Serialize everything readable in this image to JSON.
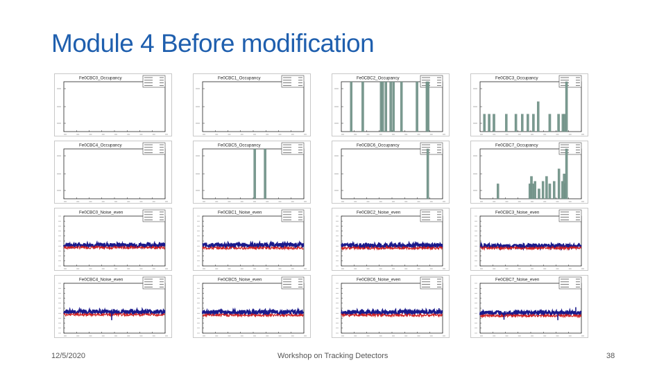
{
  "slide": {
    "title": "Module 4 Before modification",
    "footer_date": "12/5/2020",
    "footer_center": "Workshop on Tracking Detectors",
    "page_number": "38"
  },
  "colors": {
    "title": "#1f5fae",
    "occupancy_fill": "#7a9a90",
    "noise_odd": "#1a1a8c",
    "noise_even": "#d02020"
  },
  "panels": [
    {
      "title": "Fe0CBC0_Occupancy",
      "type": "occupancy",
      "bars": []
    },
    {
      "title": "Fe0CBC1_Occupancy",
      "type": "occupancy",
      "bars": []
    },
    {
      "title": "Fe0CBC2_Occupancy",
      "type": "occupancy",
      "bars": [
        {
          "x": 22,
          "h": 1.0
        },
        {
          "x": 51,
          "h": 1.0
        },
        {
          "x": 97,
          "h": 1.0
        },
        {
          "x": 101,
          "h": 1.0
        },
        {
          "x": 109,
          "h": 1.0
        },
        {
          "x": 121,
          "h": 1.0
        },
        {
          "x": 128,
          "h": 1.0
        },
        {
          "x": 148,
          "h": 1.0
        },
        {
          "x": 187,
          "h": 1.0
        },
        {
          "x": 212,
          "h": 1.0
        },
        {
          "x": 215,
          "h": 1.0
        }
      ]
    },
    {
      "title": "Fe0CBC3_Occupancy",
      "type": "occupancy",
      "bars": [
        {
          "x": 8,
          "h": 0.35
        },
        {
          "x": 20,
          "h": 0.35
        },
        {
          "x": 32,
          "h": 0.35
        },
        {
          "x": 63,
          "h": 0.35
        },
        {
          "x": 87,
          "h": 0.35
        },
        {
          "x": 103,
          "h": 0.35
        },
        {
          "x": 117,
          "h": 0.35
        },
        {
          "x": 131,
          "h": 0.35
        },
        {
          "x": 143,
          "h": 0.6
        },
        {
          "x": 172,
          "h": 0.35
        },
        {
          "x": 194,
          "h": 0.35
        },
        {
          "x": 205,
          "h": 0.35
        },
        {
          "x": 209,
          "h": 0.35
        },
        {
          "x": 214,
          "h": 1.0
        }
      ]
    },
    {
      "title": "Fe0CBC4_Occupancy",
      "type": "occupancy",
      "bars": []
    },
    {
      "title": "Fe0CBC5_Occupancy",
      "type": "occupancy",
      "bars": [
        {
          "x": 128,
          "h": 1.0
        },
        {
          "x": 154,
          "h": 1.0
        }
      ]
    },
    {
      "title": "Fe0CBC6_Occupancy",
      "type": "occupancy",
      "bars": [
        {
          "x": 214,
          "h": 1.0
        }
      ]
    },
    {
      "title": "Fe0CBC7_Occupancy",
      "type": "occupancy",
      "bars": [
        {
          "x": 42,
          "h": 0.3
        },
        {
          "x": 122,
          "h": 0.3
        },
        {
          "x": 126,
          "h": 0.45
        },
        {
          "x": 130,
          "h": 0.3
        },
        {
          "x": 135,
          "h": 0.35
        },
        {
          "x": 145,
          "h": 0.2
        },
        {
          "x": 155,
          "h": 0.35
        },
        {
          "x": 164,
          "h": 0.45
        },
        {
          "x": 172,
          "h": 0.3
        },
        {
          "x": 183,
          "h": 0.35
        },
        {
          "x": 195,
          "h": 0.6
        },
        {
          "x": 204,
          "h": 0.35
        },
        {
          "x": 208,
          "h": 0.5
        },
        {
          "x": 212,
          "h": 0.3
        },
        {
          "x": 214,
          "h": 1.0
        }
      ]
    },
    {
      "title": "Fe0CBC0_Noise_even",
      "type": "noise",
      "even_level": 3.7,
      "odd_level": 4.2,
      "spikes": []
    },
    {
      "title": "Fe0CBC1_Noise_even",
      "type": "noise",
      "even_level": 3.6,
      "odd_level": 4.2,
      "spikes": []
    },
    {
      "title": "Fe0CBC2_Noise_even",
      "type": "noise",
      "even_level": 3.6,
      "odd_level": 4.1,
      "spikes": []
    },
    {
      "title": "Fe0CBC3_Noise_even",
      "type": "noise",
      "even_level": 3.6,
      "odd_level": 4.0,
      "spikes": []
    },
    {
      "title": "Fe0CBC4_Noise_even",
      "type": "noise",
      "even_level": 3.7,
      "odd_level": 4.3,
      "spikes": [
        {
          "x": 120,
          "v": 2.6
        }
      ]
    },
    {
      "title": "Fe0CBC5_Noise_even",
      "type": "noise",
      "even_level": 3.6,
      "odd_level": 4.2,
      "spikes": []
    },
    {
      "title": "Fe0CBC6_Noise_even",
      "type": "noise",
      "even_level": 3.6,
      "odd_level": 4.2,
      "spikes": [
        {
          "x": 245,
          "v": 5.0
        }
      ]
    },
    {
      "title": "Fe0CBC7_Noise_even",
      "type": "noise",
      "even_level": 3.5,
      "odd_level": 4.1,
      "spikes": [
        {
          "x": 60,
          "v": 2.7
        },
        {
          "x": 195,
          "v": 2.6
        },
        {
          "x": 240,
          "v": 5.2
        }
      ]
    }
  ]
}
